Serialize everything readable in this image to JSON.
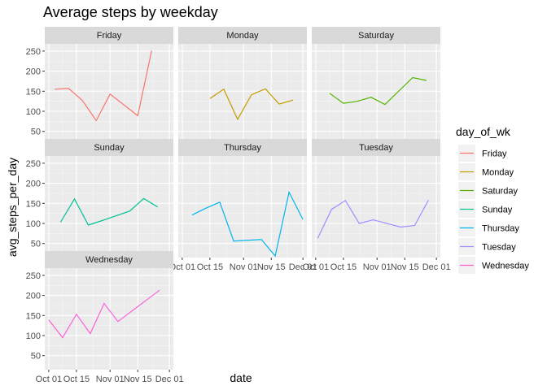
{
  "chart_data": {
    "type": "line",
    "title": "Average steps by weekday",
    "xlabel": "date",
    "ylabel": "avg_steps_per_day",
    "ylim": [
      15,
      268
    ],
    "yticks": [
      50,
      100,
      150,
      200,
      250
    ],
    "xlim": [
      "2021-09-29",
      "2021-12-03"
    ],
    "xticks": [
      {
        "date": "2021-10-01",
        "label": "Oct 01"
      },
      {
        "date": "2021-10-15",
        "label": "Oct 15"
      },
      {
        "date": "2021-11-01",
        "label": "Nov 01"
      },
      {
        "date": "2021-11-15",
        "label": "Nov 15"
      },
      {
        "date": "2021-12-01",
        "label": "Dec 01"
      }
    ],
    "facet_var": "day_of_wk",
    "legend": {
      "title": "day_of_wk",
      "position": "right"
    },
    "series": [
      {
        "name": "Friday",
        "color": "#F8766D",
        "points": [
          {
            "x": "2021-10-04",
            "y": 155
          },
          {
            "x": "2021-10-11",
            "y": 157
          },
          {
            "x": "2021-10-18",
            "y": 127
          },
          {
            "x": "2021-10-25",
            "y": 77
          },
          {
            "x": "2021-11-01",
            "y": 143
          },
          {
            "x": "2021-11-15",
            "y": 89
          },
          {
            "x": "2021-11-22",
            "y": 251
          }
        ]
      },
      {
        "name": "Monday",
        "color": "#C49A00",
        "points": [
          {
            "x": "2021-10-15",
            "y": 132
          },
          {
            "x": "2021-10-22",
            "y": 155
          },
          {
            "x": "2021-10-29",
            "y": 80
          },
          {
            "x": "2021-11-05",
            "y": 141
          },
          {
            "x": "2021-11-12",
            "y": 156
          },
          {
            "x": "2021-11-19",
            "y": 118
          },
          {
            "x": "2021-11-26",
            "y": 128
          }
        ]
      },
      {
        "name": "Saturday",
        "color": "#53B400",
        "points": [
          {
            "x": "2021-10-08",
            "y": 145
          },
          {
            "x": "2021-10-15",
            "y": 120
          },
          {
            "x": "2021-10-22",
            "y": 125
          },
          {
            "x": "2021-10-29",
            "y": 135
          },
          {
            "x": "2021-11-05",
            "y": 117
          },
          {
            "x": "2021-11-19",
            "y": 184
          },
          {
            "x": "2021-11-26",
            "y": 177
          }
        ]
      },
      {
        "name": "Sunday",
        "color": "#00C094",
        "points": [
          {
            "x": "2021-10-07",
            "y": 103
          },
          {
            "x": "2021-10-14",
            "y": 161
          },
          {
            "x": "2021-10-21",
            "y": 96
          },
          {
            "x": "2021-10-28",
            "y": 107
          },
          {
            "x": "2021-11-11",
            "y": 131
          },
          {
            "x": "2021-11-18",
            "y": 162
          },
          {
            "x": "2021-11-25",
            "y": 141
          }
        ]
      },
      {
        "name": "Thursday",
        "color": "#00B6EB",
        "points": [
          {
            "x": "2021-10-06",
            "y": 121
          },
          {
            "x": "2021-10-13",
            "y": 138
          },
          {
            "x": "2021-10-20",
            "y": 153
          },
          {
            "x": "2021-10-27",
            "y": 56
          },
          {
            "x": "2021-11-10",
            "y": 60
          },
          {
            "x": "2021-11-17",
            "y": 19
          },
          {
            "x": "2021-11-24",
            "y": 178
          },
          {
            "x": "2021-12-01",
            "y": 110
          }
        ]
      },
      {
        "name": "Tuesday",
        "color": "#A58AFF",
        "points": [
          {
            "x": "2021-10-02",
            "y": 63
          },
          {
            "x": "2021-10-09",
            "y": 135
          },
          {
            "x": "2021-10-16",
            "y": 157
          },
          {
            "x": "2021-10-23",
            "y": 100
          },
          {
            "x": "2021-10-30",
            "y": 109
          },
          {
            "x": "2021-11-13",
            "y": 91
          },
          {
            "x": "2021-11-20",
            "y": 95
          },
          {
            "x": "2021-11-27",
            "y": 158
          }
        ]
      },
      {
        "name": "Wednesday",
        "color": "#FB61D7",
        "points": [
          {
            "x": "2021-10-01",
            "y": 139
          },
          {
            "x": "2021-10-08",
            "y": 95
          },
          {
            "x": "2021-10-15",
            "y": 153
          },
          {
            "x": "2021-10-22",
            "y": 105
          },
          {
            "x": "2021-10-29",
            "y": 180
          },
          {
            "x": "2021-11-05",
            "y": 135
          },
          {
            "x": "2021-11-26",
            "y": 213
          }
        ]
      }
    ]
  }
}
